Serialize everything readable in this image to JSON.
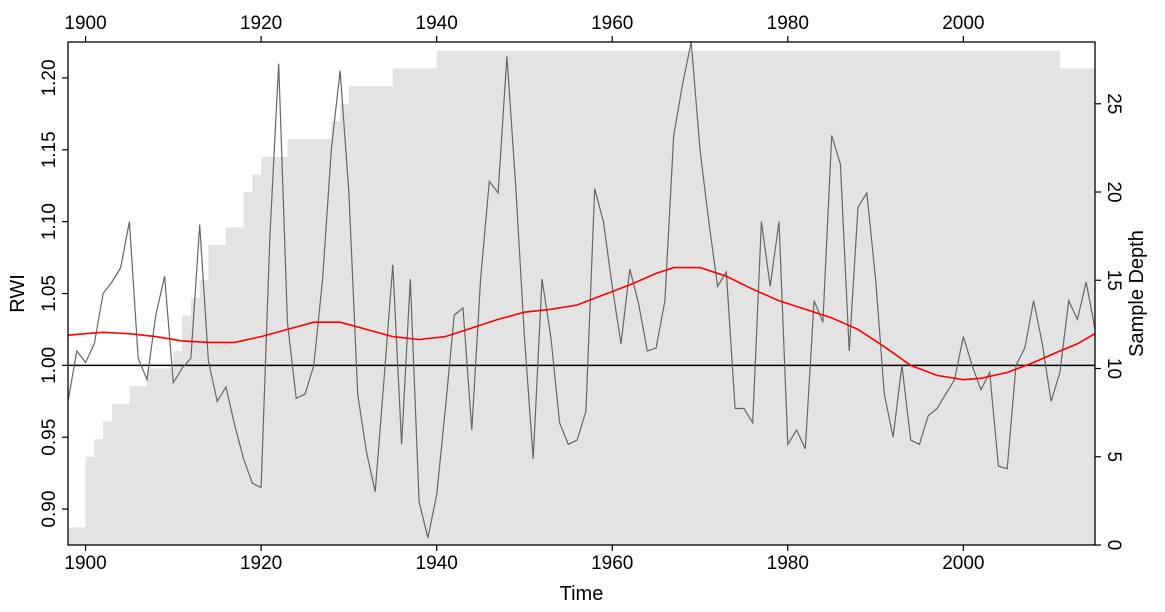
{
  "chart_data": {
    "type": "line",
    "xlabel": "Time",
    "ylabel": "RWI",
    "y2label": "Sample Depth",
    "xlim": [
      1898,
      2015
    ],
    "ylim": [
      0.875,
      1.225
    ],
    "y2lim": [
      0,
      28.5
    ],
    "xticks": [
      "1900",
      "1920",
      "1940",
      "1960",
      "1980",
      "2000"
    ],
    "yticks": [
      "0.90",
      "0.95",
      "1.00",
      "1.05",
      "1.10",
      "1.15",
      "1.20"
    ],
    "y2ticks": [
      "0",
      "5",
      "10",
      "15",
      "20",
      "25"
    ],
    "reference_line": 1.0,
    "colors": {
      "rwi": "#666666",
      "spline": "#ff0000",
      "depth_fill": "#e3e3e3",
      "reference": "#000000"
    },
    "series": [
      {
        "key": "depth",
        "type": "area-step",
        "x": [
          1898,
          1899,
          1900,
          1901,
          1902,
          1903,
          1904,
          1905,
          1906,
          1907,
          1908,
          1909,
          1910,
          1911,
          1912,
          1913,
          1914,
          1915,
          1916,
          1917,
          1918,
          1919,
          1920,
          1921,
          1922,
          1923,
          1924,
          1925,
          1926,
          1927,
          1928,
          1929,
          1930,
          1931,
          1932,
          1933,
          1934,
          1935,
          1936,
          1937,
          1938,
          1939,
          1940,
          2010,
          2011,
          2012,
          2013,
          2014,
          2015
        ],
        "values": [
          1,
          1,
          5,
          6,
          7,
          8,
          8,
          9,
          9,
          10,
          10,
          10,
          11,
          13,
          14,
          15,
          17,
          17,
          18,
          18,
          20,
          21,
          22,
          22,
          22,
          23,
          23,
          23,
          23,
          23,
          24,
          25,
          26,
          26,
          26,
          26,
          26,
          27,
          27,
          27,
          27,
          27,
          28,
          28,
          27,
          27,
          27,
          27,
          26
        ]
      },
      {
        "key": "rwi",
        "type": "line",
        "x": [
          1898,
          1899,
          1900,
          1901,
          1902,
          1903,
          1904,
          1905,
          1906,
          1907,
          1908,
          1909,
          1910,
          1911,
          1912,
          1913,
          1914,
          1915,
          1916,
          1917,
          1918,
          1919,
          1920,
          1921,
          1922,
          1923,
          1924,
          1925,
          1926,
          1927,
          1928,
          1929,
          1930,
          1931,
          1932,
          1933,
          1934,
          1935,
          1936,
          1937,
          1938,
          1939,
          1940,
          1941,
          1942,
          1943,
          1944,
          1945,
          1946,
          1947,
          1948,
          1949,
          1950,
          1951,
          1952,
          1953,
          1954,
          1955,
          1956,
          1957,
          1958,
          1959,
          1960,
          1961,
          1962,
          1963,
          1964,
          1965,
          1966,
          1967,
          1968,
          1969,
          1970,
          1971,
          1972,
          1973,
          1974,
          1975,
          1976,
          1977,
          1978,
          1979,
          1980,
          1981,
          1982,
          1983,
          1984,
          1985,
          1986,
          1987,
          1988,
          1989,
          1990,
          1991,
          1992,
          1993,
          1994,
          1995,
          1996,
          1997,
          1998,
          1999,
          2000,
          2001,
          2002,
          2003,
          2004,
          2005,
          2006,
          2007,
          2008,
          2009,
          2010,
          2011,
          2012,
          2013,
          2014,
          2015
        ],
        "values": [
          0.975,
          1.01,
          1.002,
          1.015,
          1.05,
          1.058,
          1.068,
          1.1,
          1.005,
          0.99,
          1.035,
          1.062,
          0.988,
          0.998,
          1.005,
          1.098,
          1.003,
          0.975,
          0.985,
          0.958,
          0.935,
          0.918,
          0.915,
          1.09,
          1.21,
          1.03,
          0.977,
          0.98,
          1.0,
          1.06,
          1.15,
          1.205,
          1.12,
          0.98,
          0.94,
          0.912,
          0.99,
          1.07,
          0.945,
          1.06,
          0.905,
          0.88,
          0.91,
          0.97,
          1.035,
          1.04,
          0.955,
          1.06,
          1.128,
          1.12,
          1.215,
          1.125,
          1.02,
          0.935,
          1.06,
          1.02,
          0.96,
          0.945,
          0.948,
          0.968,
          1.123,
          1.1,
          1.055,
          1.015,
          1.067,
          1.043,
          1.01,
          1.012,
          1.045,
          1.16,
          1.195,
          1.225,
          1.15,
          1.1,
          1.055,
          1.065,
          0.97,
          0.97,
          0.96,
          1.1,
          1.055,
          1.1,
          0.945,
          0.955,
          0.942,
          1.045,
          1.03,
          1.16,
          1.14,
          1.01,
          1.11,
          1.12,
          1.06,
          0.98,
          0.95,
          1.0,
          0.948,
          0.945,
          0.965,
          0.97,
          0.98,
          0.99,
          1.02,
          1.0,
          0.983,
          0.995,
          0.93,
          0.928,
          1.0,
          1.012,
          1.045,
          1.015,
          0.975,
          0.995,
          1.045,
          1.032,
          1.058,
          1.025
        ]
      },
      {
        "key": "spline",
        "type": "line",
        "x": [
          1898,
          1900,
          1902,
          1905,
          1908,
          1911,
          1914,
          1917,
          1920,
          1923,
          1926,
          1929,
          1932,
          1935,
          1938,
          1941,
          1944,
          1947,
          1950,
          1953,
          1956,
          1959,
          1962,
          1965,
          1967,
          1970,
          1973,
          1976,
          1979,
          1982,
          1985,
          1988,
          1991,
          1994,
          1997,
          2000,
          2002,
          2005,
          2008,
          2011,
          2013,
          2015
        ],
        "values": [
          1.021,
          1.022,
          1.023,
          1.022,
          1.02,
          1.017,
          1.016,
          1.016,
          1.02,
          1.025,
          1.03,
          1.03,
          1.025,
          1.02,
          1.018,
          1.02,
          1.026,
          1.032,
          1.037,
          1.039,
          1.042,
          1.049,
          1.056,
          1.064,
          1.068,
          1.068,
          1.062,
          1.053,
          1.045,
          1.039,
          1.033,
          1.025,
          1.013,
          1.0,
          0.993,
          0.99,
          0.991,
          0.995,
          1.002,
          1.01,
          1.015,
          1.022
        ]
      }
    ]
  }
}
